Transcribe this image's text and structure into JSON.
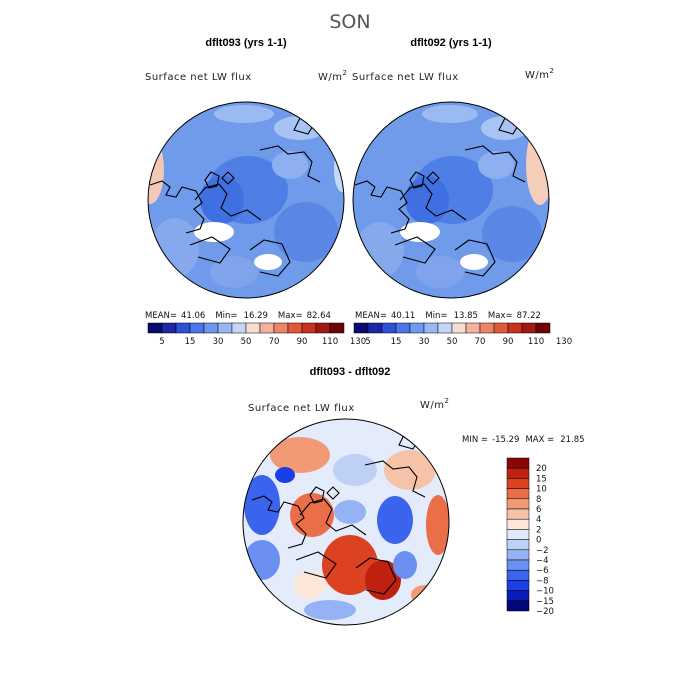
{
  "season": "SON",
  "panels": [
    {
      "title": "dflt093 (yrs 1-1)",
      "field_label": "Surface net LW flux",
      "units_base": "W/m",
      "units_exp": "2",
      "stats": {
        "mean_label": "MEAN=",
        "mean": "41.06",
        "min_label": "Min=",
        "min": "16.29",
        "max_label": "Max=",
        "max": "82.64"
      }
    },
    {
      "title": "dflt092 (yrs 1-1)",
      "field_label": "Surface net LW flux",
      "units_base": "W/m",
      "units_exp": "2",
      "stats": {
        "mean_label": "MEAN=",
        "mean": "40.11",
        "min_label": "Min=",
        "min": "13.85",
        "max_label": "Max=",
        "max": "87.22"
      }
    }
  ],
  "abs_colorbar": {
    "colors": [
      "#0a0a6e",
      "#1a28a8",
      "#2c50d8",
      "#4a78ea",
      "#6c98f0",
      "#98b8f4",
      "#c4d6f8",
      "#f6ddd0",
      "#f6b09c",
      "#ee8466",
      "#e05a3a",
      "#c8321e",
      "#a01810",
      "#6e0606"
    ],
    "tick_labels": [
      "5",
      "15",
      "30",
      "50",
      "70",
      "90",
      "110",
      "130"
    ]
  },
  "diff": {
    "title": "dflt093 - dflt092",
    "field_label": "Surface net LW flux",
    "units_base": "W/m",
    "units_exp": "2",
    "min_label": "MIN =",
    "min": "-15.29",
    "max_label": "MAX =",
    "max": "21.85"
  },
  "diff_colorbar": {
    "colors": [
      "#03037a",
      "#0a1cb8",
      "#1b3ee6",
      "#3a64ee",
      "#6b90f2",
      "#95b2f4",
      "#bed0f6",
      "#e0eafb",
      "#fce6da",
      "#f7c3a8",
      "#f29a76",
      "#ea6e48",
      "#dc4222",
      "#c02010",
      "#880808"
    ],
    "tick_labels": [
      "20",
      "15",
      "10",
      "8",
      "6",
      "4",
      "2",
      "0",
      "−2",
      "−4",
      "−6",
      "−8",
      "−10",
      "−15",
      "−20"
    ]
  }
}
